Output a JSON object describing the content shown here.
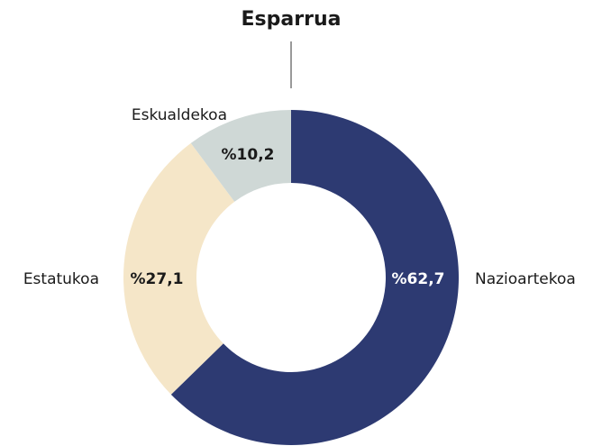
{
  "chart_data": {
    "type": "donut",
    "title": "Esparrua",
    "categories": [
      "Nazioartekoa",
      "Estatukoa",
      "Eskualdekoa"
    ],
    "values": [
      62.7,
      27.1,
      10.2
    ],
    "value_labels": [
      "%62,7",
      "%27,1",
      "%10,2"
    ],
    "colors": [
      "#2d3a72",
      "#f5e6c8",
      "#cfd8d6"
    ]
  }
}
